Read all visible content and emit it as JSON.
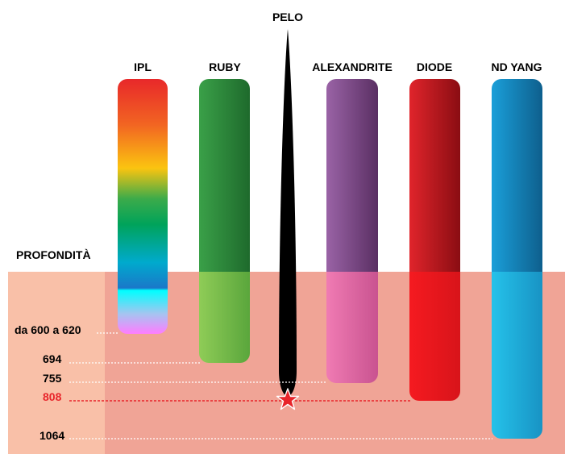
{
  "hair_label": "PELO",
  "depth_title": "PROFONDITÀ",
  "lasers": [
    {
      "name": "IPL"
    },
    {
      "name": "RUBY"
    },
    {
      "name": "ALEXANDRITE"
    },
    {
      "name": "DIODE"
    },
    {
      "name": "ND YANG"
    }
  ],
  "depths": [
    {
      "label": "da 600 a 620"
    },
    {
      "label": "694"
    },
    {
      "label": "755"
    },
    {
      "label": "808"
    },
    {
      "label": "1064"
    }
  ],
  "colors": {
    "skin": "#f0a496",
    "skin_left": "#f9c0a8",
    "highlight": "#e8242a",
    "ruby_above": "#2e8b3b",
    "ruby_below": "#7fbf4a",
    "alex_above": "#7a4c86",
    "alex_below": "#e86fa8",
    "diode_above": "#b5121b",
    "diode_below": "#e8171e",
    "ndyag_above": "#1f7fb3",
    "ndyag_below": "#1fb0db",
    "hair": "#000000"
  }
}
